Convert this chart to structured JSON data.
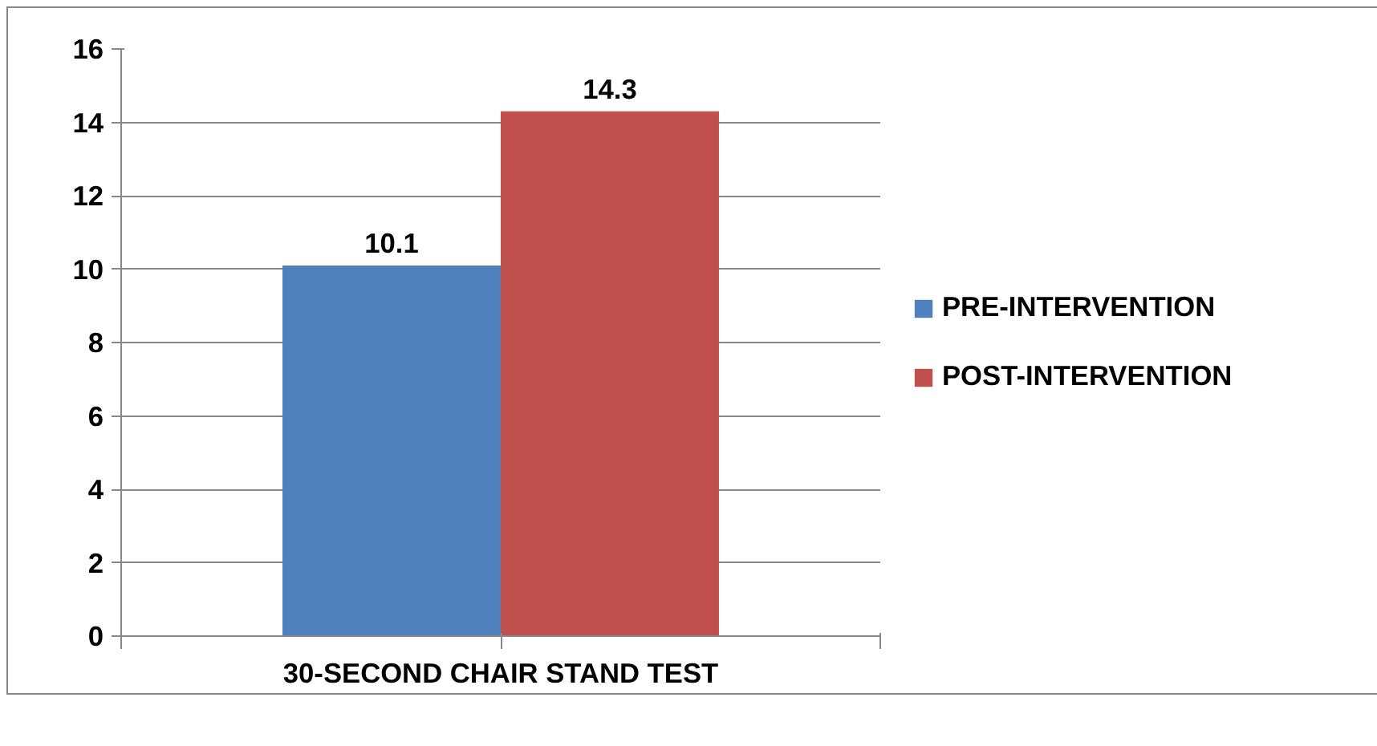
{
  "chart_data": {
    "type": "bar",
    "categories": [
      "30-SECOND CHAIR STAND TEST"
    ],
    "series": [
      {
        "name": "PRE-INTERVENTION",
        "color": "#4f81bd",
        "values": [
          10.1
        ]
      },
      {
        "name": "POST-INTERVENTION",
        "color": "#c0504d",
        "values": [
          14.3
        ]
      }
    ],
    "ylim": [
      0,
      16
    ],
    "yticks": [
      0,
      2,
      4,
      6,
      8,
      10,
      12,
      14,
      16
    ],
    "grid": "y",
    "legend": "right",
    "data_labels": true
  }
}
